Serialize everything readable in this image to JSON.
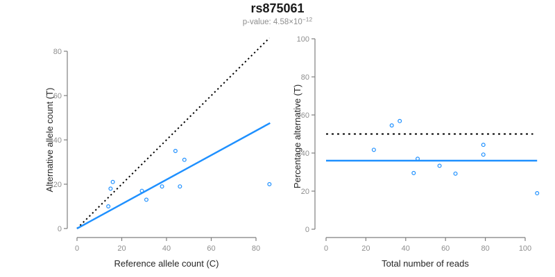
{
  "title": "rs875061",
  "subtitle": {
    "prefix": "p-value: 4.58×10",
    "exponent": "−12"
  },
  "colors": {
    "accent_blue": "#1E90FF",
    "dotted_line_black": "#000000",
    "axis_gray": "#7f7f7f",
    "tick_label_gray": "#8e8e8e",
    "axis_title_color": "#262626",
    "subtitle_gray": "#8e8e8e",
    "background": "#ffffff"
  },
  "chart_data": [
    {
      "id": "allele-counts-scatter",
      "type": "scatter",
      "xlabel": "Reference allele count (C)",
      "ylabel": "Alternative allele count (T)",
      "xlim": [
        0,
        86
      ],
      "ylim": [
        0,
        86
      ],
      "xticks": [
        0,
        20,
        40,
        60,
        80
      ],
      "yticks": [
        0,
        20,
        40,
        60,
        80
      ],
      "grid": false,
      "legend": "none",
      "point_color": "#1E90FF",
      "points": [
        [
          16,
          21
        ],
        [
          15,
          18
        ],
        [
          14,
          10
        ],
        [
          29,
          17
        ],
        [
          31,
          13
        ],
        [
          38,
          19
        ],
        [
          44,
          35
        ],
        [
          48,
          31
        ],
        [
          46,
          19
        ],
        [
          86,
          20
        ]
      ],
      "lines": [
        {
          "name": "identity-line",
          "style": "dotted",
          "color": "#000000",
          "from": [
            0,
            0
          ],
          "to": [
            86,
            86
          ],
          "meaning": "y = x (expected 1:1 ratio)"
        },
        {
          "name": "fit-line",
          "style": "solid",
          "color": "#1E90FF",
          "from": [
            0,
            0
          ],
          "to": [
            86.3,
            47.6
          ],
          "slope": 0.553
        }
      ]
    },
    {
      "id": "percentage-vs-reads-scatter",
      "type": "scatter",
      "xlabel": "Total number of reads",
      "ylabel": "Percentage alternative (T)",
      "xlim": [
        0,
        106
      ],
      "ylim": [
        0,
        100
      ],
      "xticks": [
        0,
        20,
        40,
        60,
        80,
        100
      ],
      "yticks": [
        0,
        20,
        40,
        60,
        80,
        100
      ],
      "grid": false,
      "legend": "none",
      "point_color": "#1E90FF",
      "points": [
        [
          24,
          41.7
        ],
        [
          33,
          54.5
        ],
        [
          37,
          56.8
        ],
        [
          46,
          37.0
        ],
        [
          44,
          29.5
        ],
        [
          57,
          33.3
        ],
        [
          65,
          29.2
        ],
        [
          79,
          44.3
        ],
        [
          79,
          39.2
        ],
        [
          106,
          18.9
        ]
      ],
      "lines": [
        {
          "name": "expected-50pct-line",
          "style": "dotted",
          "color": "#000000",
          "from": [
            0,
            50
          ],
          "to": [
            104,
            50
          ],
          "y": 50
        },
        {
          "name": "mean-percentage-line",
          "style": "solid",
          "color": "#1E90FF",
          "from": [
            0,
            36
          ],
          "to": [
            106,
            36
          ],
          "y": 36
        }
      ]
    }
  ]
}
